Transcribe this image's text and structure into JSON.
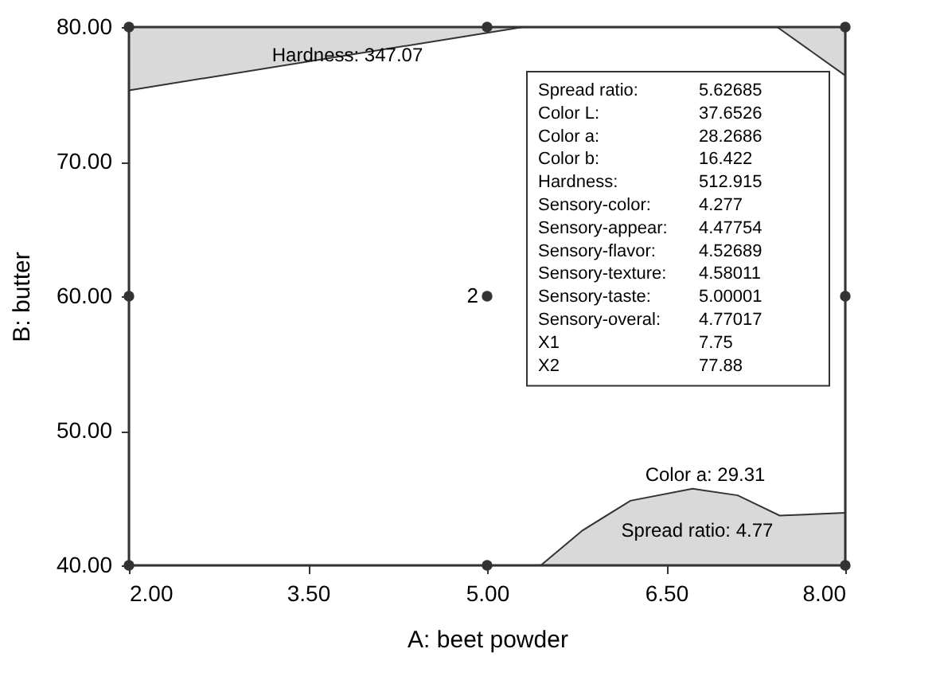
{
  "chart_data": {
    "type": "scatter",
    "xlabel": "A: beet powder",
    "ylabel": "B: butter",
    "xlim": [
      2,
      8
    ],
    "ylim": [
      40,
      80
    ],
    "xticks": [
      {
        "value": 2,
        "label": "2.00"
      },
      {
        "value": 3.5,
        "label": "3.50"
      },
      {
        "value": 5,
        "label": "5.00"
      },
      {
        "value": 6.5,
        "label": "6.50"
      },
      {
        "value": 8,
        "label": "8.00"
      }
    ],
    "yticks": [
      {
        "value": 40,
        "label": "40.00"
      },
      {
        "value": 50,
        "label": "50.00"
      },
      {
        "value": 60,
        "label": "60.00"
      },
      {
        "value": 70,
        "label": "70.00"
      },
      {
        "value": 80,
        "label": "80.00"
      }
    ],
    "grid": false,
    "series": [
      {
        "type": "area",
        "color": "#d9d9d9",
        "x": [
          2,
          5.3
        ],
        "values": [
          75.3,
          80
        ]
      },
      {
        "type": "area",
        "color": "#d9d9d9",
        "x": [
          7.43,
          8
        ],
        "values": [
          80,
          76.4
        ]
      },
      {
        "type": "area",
        "color": "#d9d9d9",
        "x": [
          5.45,
          5.8,
          6.2,
          6.72,
          7.1,
          7.45,
          8
        ],
        "values": [
          40,
          42.6,
          44.8,
          45.7,
          45.2,
          43.7,
          43.9
        ]
      },
      {
        "color": "#333333",
        "marker": "circle",
        "x": [
          2,
          2,
          2,
          5,
          5,
          5,
          8,
          8,
          8
        ],
        "values": [
          40,
          60,
          80,
          40,
          60,
          80,
          40,
          60,
          80
        ]
      }
    ],
    "annotations": [
      {
        "text": "Hardness: 347.07",
        "x": 3.83,
        "y": 77.9
      },
      "Color a: 29.31",
      "Spread ratio: 4.77",
      {
        "text": "2",
        "x": 4.9,
        "y": 60
      },
      "Spread ratio:\t5.62685",
      "Color L:\t37.6526",
      "Color a:\t28.2686",
      "Color b:\t16.422",
      "Hardness:\t512.915",
      "Sensory-color:\t4.277",
      "Sensory-appear:\t4.47754",
      "Sensory-flavor:\t4.52689",
      "Sensory-texture:\t4.58011",
      "Sensory-taste:\t5.00001",
      "Sensory-overal:\t4.77017",
      "X1\t7.75",
      "X2\t77.88"
    ]
  }
}
